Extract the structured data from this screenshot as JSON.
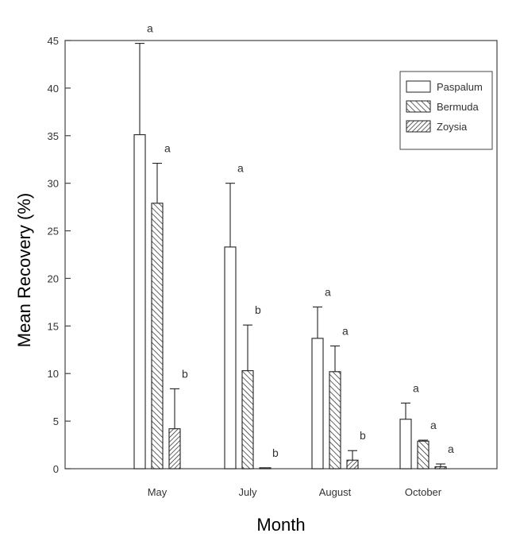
{
  "chart_data": {
    "type": "bar",
    "title": "",
    "xlabel": "Month",
    "ylabel": "Mean Recovery (%)",
    "ylim": [
      0,
      45
    ],
    "yticks": [
      0,
      5,
      10,
      15,
      20,
      25,
      30,
      35,
      40,
      45
    ],
    "ytick_labels": [
      "0",
      "5",
      "10",
      "15",
      "20",
      "25",
      "30",
      "35",
      "40",
      "45"
    ],
    "categories": [
      "May",
      "July",
      "August",
      "October"
    ],
    "series": [
      {
        "name": "Paspalum",
        "values": [
          35.1,
          23.3,
          13.7,
          5.2
        ],
        "errors": [
          9.6,
          6.7,
          3.3,
          1.7
        ],
        "letters": [
          "a",
          "a",
          "a",
          "a"
        ]
      },
      {
        "name": "Bermuda",
        "values": [
          27.9,
          10.3,
          10.2,
          2.9
        ],
        "errors": [
          4.2,
          4.8,
          2.7,
          0.1
        ],
        "letters": [
          "a",
          "b",
          "a",
          "a"
        ]
      },
      {
        "name": "Zoysia",
        "values": [
          4.2,
          0.1,
          0.9,
          0.2
        ],
        "errors": [
          4.2,
          0.0,
          1.0,
          0.3
        ],
        "letters": [
          "b",
          "b",
          "b",
          "a"
        ]
      }
    ],
    "legend_position": "top-right",
    "grid": false
  }
}
